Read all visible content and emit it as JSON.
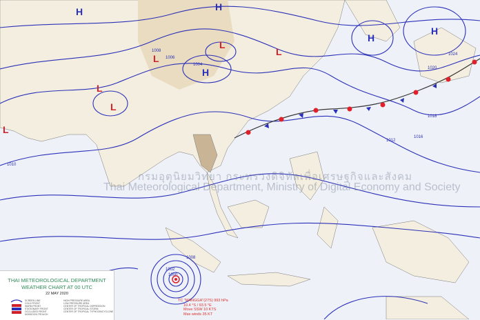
{
  "chart": {
    "department": "THAI METEOROLOGICAL DEPARTMENT",
    "title": "WEATHER CHART AT   00  UTC",
    "date": "22 MAY 2020",
    "watermark_thai": "กรมอุตุนิยมวิทยา กระทรวงดิจิทัลเพื่อเศรษฐกิจและสังคม",
    "watermark_en": "Thai Meteorological Department, Ministry of Digital Economy and Society"
  },
  "legend": {
    "left": [
      "SCREEN LINE",
      "COLD FRONT",
      "WARM FRONT",
      "STATIONARY FRONT",
      "OCCLUDED FRONT",
      "MONSOON TROUGH"
    ],
    "right": [
      "HIGH PRESSURE AREA",
      "LOW PRESSURE AREA",
      "CENTER OF TROPICAL DEPRESSION",
      "CENTER OF TROPICAL STORM",
      "CENTER OF TROPICAL TYPHOON/CYCLONE"
    ]
  },
  "cyclone": {
    "name": "TC \"MANGGA\"(27S) 993 hPa",
    "position": "10.4 °S / 93.5 °E",
    "movement": "Move SSW 10 KTS",
    "max_winds": "Max winds 35 KT"
  },
  "pressure_centers": [
    {
      "type": "H",
      "color": "#2a2fb8"
    },
    {
      "type": "H",
      "color": "#2a2fb8"
    },
    {
      "type": "H",
      "color": "#2a2fb8"
    },
    {
      "type": "H",
      "color": "#2a2fb8"
    },
    {
      "type": "H",
      "color": "#2a2fb8"
    },
    {
      "type": "L",
      "color": "#d0202a"
    },
    {
      "type": "L",
      "color": "#d0202a"
    },
    {
      "type": "L",
      "color": "#d0202a"
    },
    {
      "type": "L",
      "color": "#d0202a"
    },
    {
      "type": "L",
      "color": "#d0202a"
    },
    {
      "type": "L",
      "color": "#d0202a"
    }
  ],
  "isobar_labels": [
    "1008",
    "1006",
    "1004",
    "1012",
    "1016",
    "1018",
    "1020",
    "1024",
    "1010",
    "1008",
    "1002",
    "1000"
  ],
  "colors": {
    "isobar": "#2a2fb8",
    "low": "#d0202a",
    "high": "#2a2fb8",
    "land": "#f1ecdc",
    "ocean": "#eef1f8",
    "thailand": "#c9b595"
  }
}
